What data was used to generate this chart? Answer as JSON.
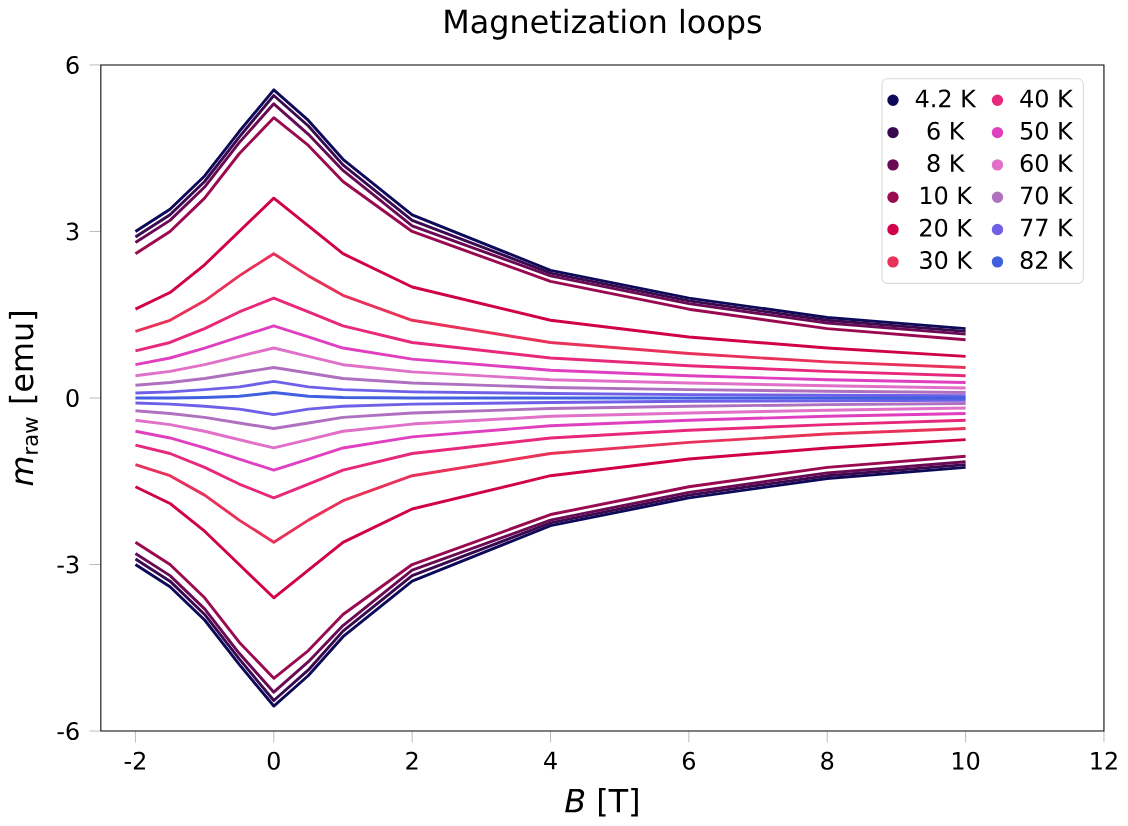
{
  "chart_data": {
    "type": "line",
    "title": "Magnetization loops",
    "xlabel": "*B* [T]",
    "ylabel": "*m*$_{raw}$ [emu]",
    "x": [
      -2,
      -1.5,
      -1,
      -0.5,
      0,
      0.5,
      1,
      2,
      4,
      6,
      8,
      10
    ],
    "xlim": [
      -2.5,
      12
    ],
    "ylim": [
      -6,
      6
    ],
    "xticks": [
      -2,
      0,
      2,
      4,
      6,
      8,
      10,
      12
    ],
    "yticks": [
      -6,
      -3,
      0,
      3,
      6
    ],
    "legend": "top right",
    "series": [
      {
        "name": "4.2 K",
        "color": "#0d0a5a",
        "values": [
          3.0,
          3.4,
          4.0,
          4.8,
          5.55,
          5.0,
          4.3,
          3.3,
          2.3,
          1.8,
          1.45,
          1.25
        ]
      },
      {
        "color": "#0d0a5a",
        "values": [
          -3.0,
          -3.4,
          -4.0,
          -4.8,
          -5.55,
          -5.0,
          -4.3,
          -3.3,
          -2.3,
          -1.8,
          -1.45,
          -1.25
        ]
      },
      {
        "name": "6 K",
        "color": "#3a0a50",
        "values": [
          2.9,
          3.3,
          3.9,
          4.7,
          5.45,
          4.9,
          4.2,
          3.2,
          2.25,
          1.75,
          1.4,
          1.2
        ]
      },
      {
        "color": "#3a0a50",
        "values": [
          -2.9,
          -3.3,
          -3.9,
          -4.7,
          -5.45,
          -4.9,
          -4.2,
          -3.2,
          -2.25,
          -1.75,
          -1.4,
          -1.2
        ]
      },
      {
        "name": "8 K",
        "color": "#6a0a55",
        "values": [
          2.8,
          3.2,
          3.8,
          4.6,
          5.3,
          4.75,
          4.1,
          3.1,
          2.2,
          1.7,
          1.35,
          1.15
        ]
      },
      {
        "color": "#6a0a55",
        "values": [
          -2.8,
          -3.2,
          -3.8,
          -4.6,
          -5.3,
          -4.75,
          -4.1,
          -3.1,
          -2.2,
          -1.7,
          -1.35,
          -1.15
        ]
      },
      {
        "name": "10 K",
        "color": "#9a0a50",
        "values": [
          2.6,
          3.0,
          3.6,
          4.4,
          5.05,
          4.55,
          3.9,
          3.0,
          2.1,
          1.6,
          1.25,
          1.05
        ]
      },
      {
        "color": "#9a0a50",
        "values": [
          -2.6,
          -3.0,
          -3.6,
          -4.4,
          -5.05,
          -4.55,
          -3.9,
          -3.0,
          -2.1,
          -1.6,
          -1.25,
          -1.05
        ]
      },
      {
        "name": "20 K",
        "color": "#d0004a",
        "values": [
          1.6,
          1.9,
          2.4,
          3.0,
          3.6,
          3.1,
          2.6,
          2.0,
          1.4,
          1.1,
          0.9,
          0.75
        ]
      },
      {
        "color": "#d0004a",
        "values": [
          -1.6,
          -1.9,
          -2.4,
          -3.0,
          -3.6,
          -3.1,
          -2.6,
          -2.0,
          -1.4,
          -1.1,
          -0.9,
          -0.75
        ]
      },
      {
        "name": "30 K",
        "color": "#e8325a",
        "values": [
          1.2,
          1.4,
          1.75,
          2.2,
          2.6,
          2.2,
          1.85,
          1.4,
          1.0,
          0.8,
          0.65,
          0.55
        ]
      },
      {
        "color": "#e8325a",
        "values": [
          -1.2,
          -1.4,
          -1.75,
          -2.2,
          -2.6,
          -2.2,
          -1.85,
          -1.4,
          -1.0,
          -0.8,
          -0.65,
          -0.55
        ]
      },
      {
        "name": "40 K",
        "color": "#e8287a",
        "values": [
          0.85,
          1.0,
          1.25,
          1.55,
          1.8,
          1.55,
          1.3,
          1.0,
          0.72,
          0.58,
          0.48,
          0.4
        ]
      },
      {
        "color": "#e8287a",
        "values": [
          -0.85,
          -1.0,
          -1.25,
          -1.55,
          -1.8,
          -1.55,
          -1.3,
          -1.0,
          -0.72,
          -0.58,
          -0.48,
          -0.4
        ]
      },
      {
        "name": "50 K",
        "color": "#e040c0",
        "values": [
          0.6,
          0.72,
          0.9,
          1.1,
          1.3,
          1.1,
          0.9,
          0.7,
          0.5,
          0.4,
          0.33,
          0.28
        ]
      },
      {
        "color": "#e040c0",
        "values": [
          -0.6,
          -0.72,
          -0.9,
          -1.1,
          -1.3,
          -1.1,
          -0.9,
          -0.7,
          -0.5,
          -0.4,
          -0.33,
          -0.28
        ]
      },
      {
        "name": "60 K",
        "color": "#e070c8",
        "values": [
          0.4,
          0.48,
          0.6,
          0.75,
          0.9,
          0.75,
          0.6,
          0.47,
          0.33,
          0.27,
          0.22,
          0.18
        ]
      },
      {
        "color": "#e070c8",
        "values": [
          -0.4,
          -0.48,
          -0.6,
          -0.75,
          -0.9,
          -0.75,
          -0.6,
          -0.47,
          -0.33,
          -0.27,
          -0.22,
          -0.18
        ]
      },
      {
        "name": "70 K",
        "color": "#b070c0",
        "values": [
          0.23,
          0.28,
          0.35,
          0.45,
          0.55,
          0.45,
          0.35,
          0.27,
          0.19,
          0.15,
          0.12,
          0.1
        ]
      },
      {
        "color": "#b070c0",
        "values": [
          -0.23,
          -0.28,
          -0.35,
          -0.45,
          -0.55,
          -0.45,
          -0.35,
          -0.27,
          -0.19,
          -0.15,
          -0.12,
          -0.1
        ]
      },
      {
        "name": "77 K",
        "color": "#7060e8",
        "values": [
          0.09,
          0.11,
          0.15,
          0.2,
          0.3,
          0.2,
          0.15,
          0.11,
          0.08,
          0.06,
          0.05,
          0.04
        ]
      },
      {
        "color": "#7060e8",
        "values": [
          -0.09,
          -0.11,
          -0.15,
          -0.2,
          -0.3,
          -0.2,
          -0.15,
          -0.11,
          -0.08,
          -0.06,
          -0.05,
          -0.04
        ]
      },
      {
        "name": "82 K",
        "color": "#4060e0",
        "values": [
          0,
          0,
          0.01,
          0.03,
          0.1,
          0.03,
          0.01,
          0,
          0,
          0,
          0,
          0
        ]
      }
    ]
  }
}
